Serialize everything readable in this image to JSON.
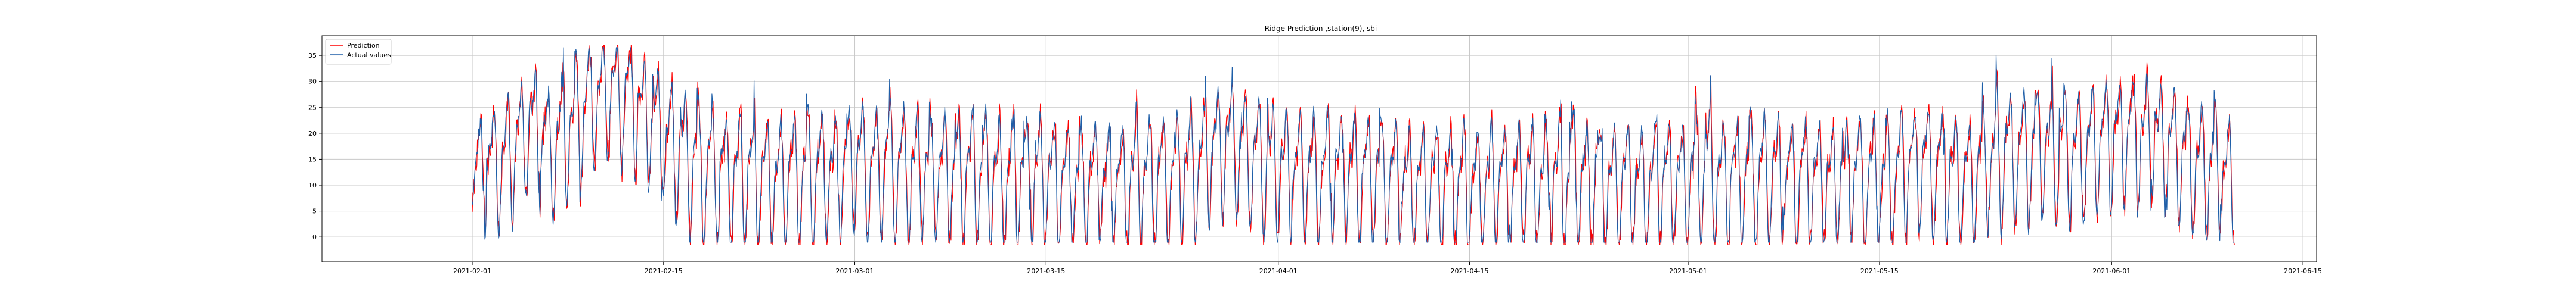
{
  "chart_data": {
    "type": "line",
    "title": "Ridge Prediction ,station(9), sbi",
    "xlabel": "",
    "ylabel": "",
    "x_range": [
      "2021-01-21",
      "2021-06-16"
    ],
    "x_ticks": [
      "2021-02-01",
      "2021-02-15",
      "2021-03-01",
      "2021-03-15",
      "2021-04-01",
      "2021-04-15",
      "2021-05-01",
      "2021-05-15",
      "2021-06-01",
      "2021-06-15"
    ],
    "ylim": [
      -4.8,
      38.8
    ],
    "y_ticks": [
      0,
      5,
      10,
      15,
      20,
      25,
      30,
      35
    ],
    "grid": true,
    "legend_position": "top-left",
    "series": [
      {
        "name": "Prediction",
        "color": "#ff0000",
        "x_start": "2021-02-01",
        "x_end": "2021-06-10",
        "points": [
          [
            "2021-02-01",
            12
          ],
          [
            "2021-02-02",
            16
          ],
          [
            "2021-02-03",
            14
          ],
          [
            "2021-02-05",
            22
          ],
          [
            "2021-02-07",
            18
          ],
          [
            "2021-02-09",
            25
          ],
          [
            "2021-02-11",
            30
          ],
          [
            "2021-02-13",
            27
          ],
          [
            "2021-02-15",
            20
          ],
          [
            "2021-02-17",
            15
          ],
          [
            "2021-02-20",
            13
          ],
          [
            "2021-02-23",
            12
          ],
          [
            "2021-02-26",
            13
          ],
          [
            "2021-03-01",
            15
          ],
          [
            "2021-03-05",
            14
          ],
          [
            "2021-03-10",
            13
          ],
          [
            "2021-03-15",
            12
          ],
          [
            "2021-03-20",
            11
          ],
          [
            "2021-03-25",
            13
          ],
          [
            "2021-03-28",
            19
          ],
          [
            "2021-04-01",
            14
          ],
          [
            "2021-04-05",
            13
          ],
          [
            "2021-04-10",
            12
          ],
          [
            "2021-04-15",
            11
          ],
          [
            "2021-04-20",
            12
          ],
          [
            "2021-04-25",
            11
          ],
          [
            "2021-05-01",
            12
          ],
          [
            "2021-05-05",
            13
          ],
          [
            "2021-05-10",
            12
          ],
          [
            "2021-05-15",
            12
          ],
          [
            "2021-05-18",
            15
          ],
          [
            "2021-05-21",
            12
          ],
          [
            "2021-05-24",
            17
          ],
          [
            "2021-05-27",
            18
          ],
          [
            "2021-05-30",
            17
          ],
          [
            "2021-06-01",
            21
          ],
          [
            "2021-06-04",
            20
          ],
          [
            "2021-06-07",
            15
          ],
          [
            "2021-06-10",
            12
          ]
        ]
      },
      {
        "name": "Actual values",
        "color": "#1f5fa8",
        "x_start": "2021-02-01",
        "x_end": "2021-06-10",
        "points": [
          [
            "2021-02-01",
            11
          ],
          [
            "2021-02-02",
            15
          ],
          [
            "2021-02-03",
            13
          ],
          [
            "2021-02-05",
            21
          ],
          [
            "2021-02-07",
            17
          ],
          [
            "2021-02-09",
            24
          ],
          [
            "2021-02-11",
            29
          ],
          [
            "2021-02-13",
            26
          ],
          [
            "2021-02-15",
            19
          ],
          [
            "2021-02-17",
            14
          ],
          [
            "2021-02-20",
            12
          ],
          [
            "2021-02-23",
            11
          ],
          [
            "2021-02-26",
            12
          ],
          [
            "2021-03-01",
            14
          ],
          [
            "2021-03-05",
            13
          ],
          [
            "2021-03-10",
            12
          ],
          [
            "2021-03-15",
            11
          ],
          [
            "2021-03-20",
            10
          ],
          [
            "2021-03-25",
            12
          ],
          [
            "2021-03-28",
            18
          ],
          [
            "2021-04-01",
            13
          ],
          [
            "2021-04-05",
            12
          ],
          [
            "2021-04-10",
            11
          ],
          [
            "2021-04-15",
            10
          ],
          [
            "2021-04-20",
            11
          ],
          [
            "2021-04-25",
            10
          ],
          [
            "2021-05-01",
            11
          ],
          [
            "2021-05-05",
            12
          ],
          [
            "2021-05-10",
            11
          ],
          [
            "2021-05-15",
            11
          ],
          [
            "2021-05-18",
            14
          ],
          [
            "2021-05-21",
            11
          ],
          [
            "2021-05-24",
            16
          ],
          [
            "2021-05-27",
            17
          ],
          [
            "2021-05-30",
            16
          ],
          [
            "2021-06-01",
            20
          ],
          [
            "2021-06-04",
            19
          ],
          [
            "2021-06-07",
            14
          ],
          [
            "2021-06-10",
            11
          ]
        ]
      }
    ]
  }
}
